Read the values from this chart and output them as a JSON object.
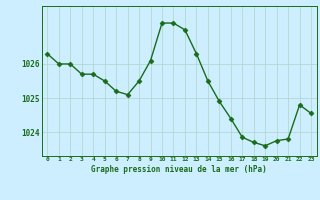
{
  "x": [
    0,
    1,
    2,
    3,
    4,
    5,
    6,
    7,
    8,
    9,
    10,
    11,
    12,
    13,
    14,
    15,
    16,
    17,
    18,
    19,
    20,
    21,
    22,
    23
  ],
  "y": [
    1026.3,
    1026.0,
    1026.0,
    1025.7,
    1025.7,
    1025.5,
    1025.2,
    1025.1,
    1025.5,
    1026.1,
    1027.2,
    1027.2,
    1027.0,
    1026.3,
    1025.5,
    1024.9,
    1024.4,
    1023.85,
    1023.7,
    1023.6,
    1023.75,
    1023.8,
    1024.8,
    1024.55
  ],
  "line_color": "#1a6b1a",
  "marker_color": "#1a6b1a",
  "bg_color": "#cceeff",
  "grid_color": "#b0d4c8",
  "text_color": "#1a6b1a",
  "title": "Graphe pression niveau de la mer (hPa)",
  "xlabel_ticks": [
    0,
    1,
    2,
    3,
    4,
    5,
    6,
    7,
    8,
    9,
    10,
    11,
    12,
    13,
    14,
    15,
    16,
    17,
    18,
    19,
    20,
    21,
    22,
    23
  ],
  "ytick_vals": [
    1024,
    1025,
    1026
  ],
  "ylim": [
    1023.3,
    1027.7
  ],
  "xlim": [
    -0.5,
    23.5
  ]
}
